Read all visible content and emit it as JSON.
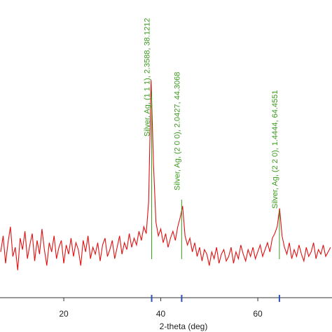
{
  "chart_data": {
    "type": "line",
    "xlabel": "2-theta (deg)",
    "xlim": [
      6.85,
      75.3
    ],
    "ylim": [
      0,
      130
    ],
    "xticks": [
      20,
      40,
      60
    ],
    "series": [
      {
        "name": null,
        "color": "#e01010",
        "x": [
          7,
          7.5,
          8,
          8.5,
          9,
          9.5,
          10,
          10.5,
          11,
          11.5,
          12,
          12.5,
          13,
          13.5,
          14,
          14.5,
          15,
          15.5,
          16,
          16.5,
          17,
          17.5,
          18,
          18.5,
          19,
          19.5,
          20,
          20.5,
          21,
          21.5,
          22,
          22.5,
          23,
          23.5,
          24,
          24.5,
          25,
          25.5,
          26,
          26.5,
          27,
          27.5,
          28,
          28.5,
          29,
          29.5,
          30,
          30.5,
          31,
          31.5,
          32,
          32.5,
          33,
          33.5,
          34,
          34.5,
          35,
          35.5,
          36,
          36.5,
          37,
          37.5,
          38,
          38.5,
          39,
          39.5,
          40,
          40.5,
          41,
          41.5,
          42,
          42.5,
          43,
          43.5,
          44,
          44.5,
          45,
          45.5,
          46,
          46.5,
          47,
          47.5,
          48,
          48.5,
          49,
          49.5,
          50,
          50.5,
          51,
          51.5,
          52,
          52.5,
          53,
          53.5,
          54,
          54.5,
          55,
          55.5,
          56,
          56.5,
          57,
          57.5,
          58,
          58.5,
          59,
          59.5,
          60,
          60.5,
          61,
          61.5,
          62,
          62.5,
          63,
          63.5,
          64,
          64.5,
          65,
          65.5,
          66,
          66.5,
          67,
          67.5,
          68,
          68.5,
          69,
          69.5,
          70,
          70.5,
          71,
          71.5,
          72,
          72.5,
          73,
          73.5,
          74,
          74.5,
          75
        ],
        "values": [
          20,
          27,
          15,
          24,
          31,
          18,
          22,
          12,
          26,
          21,
          29,
          17,
          23,
          28,
          16,
          25,
          19,
          30,
          21,
          14,
          24,
          20,
          27,
          17,
          22,
          25,
          15,
          23,
          19,
          26,
          18,
          24,
          21,
          14,
          25,
          20,
          27,
          17,
          22,
          19,
          24,
          16,
          23,
          26,
          18,
          21,
          25,
          17,
          22,
          27,
          19,
          24,
          21,
          28,
          22,
          26,
          23,
          29,
          25,
          31,
          28,
          42,
          95,
          58,
          33,
          27,
          30,
          24,
          28,
          22,
          26,
          29,
          25,
          31,
          35,
          40,
          27,
          23,
          26,
          20,
          24,
          18,
          22,
          16,
          21,
          19,
          14,
          20,
          17,
          22,
          15,
          19,
          21,
          16,
          18,
          22,
          15,
          20,
          17,
          23,
          19,
          16,
          21,
          18,
          22,
          17,
          20,
          23,
          18,
          21,
          24,
          20,
          26,
          28,
          31,
          39,
          27,
          22,
          19,
          24,
          17,
          21,
          18,
          23,
          19,
          16,
          22,
          18,
          20,
          24,
          17,
          21,
          19,
          23,
          18,
          20,
          22
        ]
      }
    ],
    "annotations": [
      {
        "x": 38.1212,
        "text": "Silver, Ag, (1 1 1), 2.3588, 38.1212"
      },
      {
        "x": 44.3068,
        "text": "Silver, Ag, (2 0 0), 2.0427, 44.3068"
      },
      {
        "x": 64.4551,
        "text": "Silver, Ag, (2 2 0), 1.4444, 64.4551"
      }
    ]
  }
}
